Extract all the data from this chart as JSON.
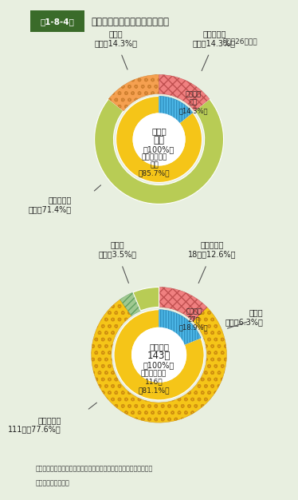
{
  "bg_color": "#e8efe0",
  "title_box_color": "#3a6b2a",
  "title_box_text": "第1-8-4図",
  "title_text": "ガス事故による態様別死傷者数",
  "subtitle": "（平成26年中）",
  "note_line1": "（備考）　「都市ガス、液化石油ガス及び毒劇物等による事故状況」",
  "note_line2": "　　　　により作成",
  "chart1": {
    "center_line1": "死者数",
    "center_line2": "７人",
    "center_line3": "（100%）",
    "inner_lpg_color": "#f5c518",
    "inner_lpg_value": 6,
    "inner_lpg_total": 7,
    "inner_city_color": "#4db8e8",
    "inner_city_value": 1,
    "inner_city_total": 7,
    "outer_lpg_fire_color": "#b8cc55",
    "outer_lpg_fire_value": 5,
    "outer_lpg_fire_total": 7,
    "outer_lpg_leak_color": "#f5a050",
    "outer_lpg_leak_value": 1,
    "outer_lpg_leak_total": 7,
    "outer_city_fire_color": "#f08080",
    "outer_city_fire_value": 1,
    "outer_city_fire_total": 7,
    "label_lpg_inner": "液化石油ガス\n６人\n（85.7%）",
    "label_city_inner": "都市ガス\n１人\n（14.3%）",
    "label_leak_outer": "漏えい\n１人（14.3%）",
    "label_fire_outer": "爆発・火災\n１人（14.3%）",
    "label_lpg_fire_outer": "爆発・火災\n５人（71.4%）"
  },
  "chart2": {
    "center_line1": "負傷者数",
    "center_line2": "143人",
    "center_line3": "（100%）",
    "inner_lpg_color": "#f5c518",
    "inner_lpg_value": 116,
    "inner_city_color": "#4db8e8",
    "inner_city_value": 27,
    "total": 143,
    "outer_lpg_fire_color": "#f5c518",
    "outer_lpg_fire_value": 111,
    "outer_lpg_leak_color": "#a0c890",
    "outer_lpg_leak_value": 5,
    "outer_city_fire_color": "#f08080",
    "outer_city_fire_value": 18,
    "outer_city_leak_color": "#b8cc55",
    "outer_city_leak_value": 9,
    "label_lpg_inner": "液化石油ガス\n116人\n（81.1%）",
    "label_city_inner": "都市ガス\n27人\n（18.9%）",
    "label_lpg_leak_outer": "漏えい\n５人（3.5%）",
    "label_city_fire_outer": "爆発・火災\n18人（12.6%）",
    "label_city_leak_outer": "漏えい\n９人（6.3%）",
    "label_lpg_fire_outer": "爆発・火災\n111人（77.6%）"
  }
}
